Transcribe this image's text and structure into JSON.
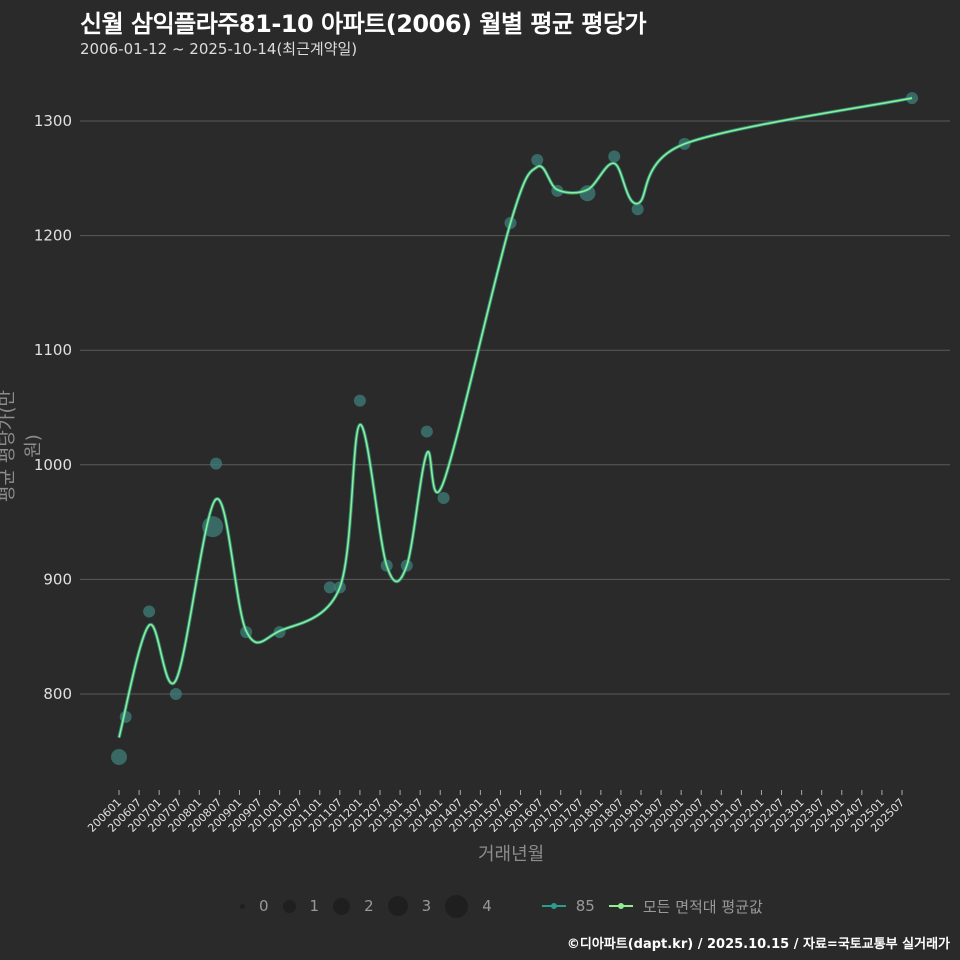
{
  "header": {
    "title": "신월 삼익플라주81-10 아파트(2006) 월별 평균 평당가",
    "subtitle": "2006-01-12 ~ 2025-10-14(최근계약일)"
  },
  "credit": "©디아파트(dapt.kr) / 2025.10.15 / 자료=국토교통부 실거래가",
  "colors": {
    "background": "#2a2a2b",
    "grid": "#5a5a5a",
    "series_85": "#2a9d8f",
    "series_avg": "#90ee90",
    "bubble": "#3d7f7a"
  },
  "legend": {
    "size_labels": [
      "0",
      "1",
      "2",
      "3",
      "4"
    ],
    "series": [
      {
        "label": "85",
        "color": "#2a9d8f"
      },
      {
        "label": "모든 면적대 평균값",
        "color": "#90ee90"
      }
    ]
  },
  "chart_data": {
    "type": "line",
    "title": "신월 삼익플라주81-10 아파트(2006) 월별 평균 평당가",
    "subtitle": "2006-01-12 ~ 2025-10-14(최근계약일)",
    "xlabel": "거래년월",
    "ylabel": "평균 평당가(만 원)",
    "ylim": [
      715,
      1340
    ],
    "yticks": [
      800,
      900,
      1000,
      1100,
      1200,
      1300
    ],
    "xticks": [
      "200601",
      "200607",
      "200701",
      "200707",
      "200801",
      "200807",
      "200901",
      "200907",
      "201001",
      "201007",
      "201101",
      "201107",
      "201201",
      "201207",
      "201301",
      "201307",
      "201401",
      "201407",
      "201501",
      "201507",
      "201601",
      "201607",
      "201701",
      "201707",
      "201801",
      "201807",
      "201901",
      "201907",
      "202001",
      "202007",
      "202101",
      "202107",
      "202201",
      "202207",
      "202301",
      "202307",
      "202401",
      "202407",
      "202501",
      "202507"
    ],
    "grid": true,
    "legend_position": "bottom",
    "series": [
      {
        "name": "85",
        "kind": "bubble (count by size)",
        "points": [
          {
            "x": "2006-01",
            "y": 745,
            "size": 3
          },
          {
            "x": "2006-03",
            "y": 780,
            "size": 2
          },
          {
            "x": "2006-10",
            "y": 872,
            "size": 2
          },
          {
            "x": "2007-06",
            "y": 800,
            "size": 2
          },
          {
            "x": "2008-05",
            "y": 946,
            "size": 4
          },
          {
            "x": "2008-06",
            "y": 1001,
            "size": 2
          },
          {
            "x": "2009-03",
            "y": 854,
            "size": 2
          },
          {
            "x": "2010-01",
            "y": 854,
            "size": 2
          },
          {
            "x": "2011-04",
            "y": 893,
            "size": 2
          },
          {
            "x": "2011-07",
            "y": 893,
            "size": 2
          },
          {
            "x": "2012-01",
            "y": 1056,
            "size": 2
          },
          {
            "x": "2012-09",
            "y": 912,
            "size": 2
          },
          {
            "x": "2013-03",
            "y": 912,
            "size": 2
          },
          {
            "x": "2013-09",
            "y": 1029,
            "size": 2
          },
          {
            "x": "2014-02",
            "y": 971,
            "size": 2
          },
          {
            "x": "2015-10",
            "y": 1211,
            "size": 2
          },
          {
            "x": "2016-06",
            "y": 1266,
            "size": 2
          },
          {
            "x": "2016-12",
            "y": 1239,
            "size": 2
          },
          {
            "x": "2017-09",
            "y": 1237,
            "size": 3
          },
          {
            "x": "2018-05",
            "y": 1269,
            "size": 2
          },
          {
            "x": "2018-12",
            "y": 1223,
            "size": 2
          },
          {
            "x": "2020-02",
            "y": 1280,
            "size": 2
          },
          {
            "x": "2025-10",
            "y": 1320,
            "size": 2
          }
        ]
      },
      {
        "name": "모든 면적대 평균값",
        "kind": "smoothed line",
        "points": [
          {
            "x": "2006-01",
            "y": 762
          },
          {
            "x": "2006-10",
            "y": 860
          },
          {
            "x": "2007-06",
            "y": 812
          },
          {
            "x": "2008-06",
            "y": 970
          },
          {
            "x": "2009-03",
            "y": 855
          },
          {
            "x": "2010-01",
            "y": 855
          },
          {
            "x": "2011-07",
            "y": 893
          },
          {
            "x": "2012-01",
            "y": 1035
          },
          {
            "x": "2012-09",
            "y": 912
          },
          {
            "x": "2013-03",
            "y": 912
          },
          {
            "x": "2013-09",
            "y": 1010
          },
          {
            "x": "2014-02",
            "y": 985
          },
          {
            "x": "2015-10",
            "y": 1211
          },
          {
            "x": "2016-06",
            "y": 1260
          },
          {
            "x": "2016-12",
            "y": 1240
          },
          {
            "x": "2017-09",
            "y": 1240
          },
          {
            "x": "2018-05",
            "y": 1263
          },
          {
            "x": "2018-12",
            "y": 1228
          },
          {
            "x": "2020-02",
            "y": 1280
          },
          {
            "x": "2025-10",
            "y": 1320
          }
        ]
      }
    ]
  }
}
